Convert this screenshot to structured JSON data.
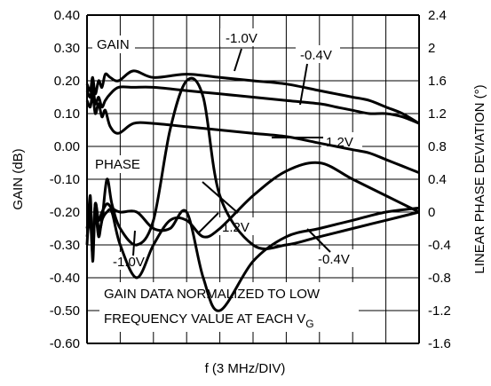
{
  "chart_data": {
    "type": "line",
    "xlabel": "f (3 MHz/DIV)",
    "ylabel_left": "GAIN (dB)",
    "ylabel_right": "LINEAR PHASE DEVIATION (°)",
    "left_ticks": [
      "0.40",
      "0.30",
      "0.20",
      "0.10",
      "0.00",
      "-0.10",
      "-0.20",
      "-0.30",
      "-0.40",
      "-0.50",
      "-0.60"
    ],
    "right_ticks": [
      "2.4",
      "2",
      "1.6",
      "1.2",
      "0.8",
      "0.4",
      "0",
      "-0.4",
      "-0.8",
      "-1.2",
      "-1.6"
    ],
    "ylim_left": [
      -0.6,
      0.4
    ],
    "ylim_right": [
      -1.6,
      2.4
    ],
    "xlim_div": [
      0,
      10
    ],
    "grid": true,
    "labels": {
      "gain": "GAIN",
      "phase": "PHASE",
      "v_m10_top": "-1.0V",
      "v_m04_top": "-0.4V",
      "v_12_top": "1.2V",
      "v_12_bottom": "1.2V",
      "v_m10_bottom": "-1.0V",
      "v_m04_bottom": "-0.4V"
    },
    "note_line1": "GAIN DATA NORMALIZED TO LOW",
    "note_line2": "FREQUENCY VALUE AT EACH V",
    "note_sub": "G",
    "series": [
      {
        "axis": "left",
        "x": [
          0,
          0.1,
          0.17,
          0.25,
          0.35,
          0.45,
          0.55,
          0.7,
          0.95,
          1.4,
          2,
          3,
          4,
          5,
          6,
          7,
          7.5,
          8,
          8.5,
          9,
          9.5,
          10
        ],
        "values": [
          0.19,
          0.17,
          0.21,
          0.16,
          0.2,
          0.18,
          0.22,
          0.21,
          0.2,
          0.23,
          0.21,
          0.22,
          0.21,
          0.2,
          0.19,
          0.17,
          0.16,
          0.15,
          0.14,
          0.12,
          0.1,
          0.07
        ]
      },
      {
        "axis": "left",
        "x": [
          0,
          0.1,
          0.17,
          0.25,
          0.35,
          0.45,
          0.55,
          0.7,
          0.95,
          1.4,
          2,
          3,
          4,
          5,
          6,
          7,
          7.5,
          8,
          8.5,
          9,
          9.5,
          10
        ],
        "values": [
          0.17,
          0.15,
          0.19,
          0.13,
          0.15,
          0.12,
          0.14,
          0.16,
          0.18,
          0.18,
          0.18,
          0.17,
          0.16,
          0.15,
          0.14,
          0.13,
          0.12,
          0.11,
          0.1,
          0.1,
          0.09,
          0.07
        ]
      },
      {
        "axis": "left",
        "x": [
          0,
          0.1,
          0.17,
          0.25,
          0.35,
          0.45,
          0.55,
          0.7,
          0.95,
          1.4,
          2,
          3,
          4,
          5,
          6,
          7,
          7.5,
          8,
          8.5,
          9,
          9.5,
          10
        ],
        "values": [
          0.14,
          0.12,
          0.16,
          0.1,
          0.13,
          0.09,
          0.11,
          0.06,
          0.04,
          0.07,
          0.07,
          0.06,
          0.05,
          0.04,
          0.03,
          0.01,
          0.0,
          -0.01,
          -0.02,
          -0.04,
          -0.06,
          -0.08
        ]
      },
      {
        "axis": "right",
        "x": [
          0,
          0.1,
          0.17,
          0.25,
          0.35,
          0.45,
          0.6,
          0.75,
          1,
          1.5,
          2,
          2.5,
          3,
          3.5,
          4,
          5,
          6,
          7,
          8,
          9,
          10
        ],
        "values": [
          -0.4,
          0.2,
          -0.6,
          0.1,
          -0.2,
          -0.1,
          0.4,
          0.1,
          -0.2,
          -0.4,
          -0.1,
          1,
          1.6,
          1.4,
          0.2,
          -0.4,
          -0.4,
          -0.3,
          -0.2,
          -0.1,
          0.0
        ]
      },
      {
        "axis": "right",
        "x": [
          0,
          0.1,
          0.17,
          0.25,
          0.35,
          0.45,
          0.6,
          0.75,
          1,
          1.5,
          2,
          2.5,
          3,
          3.5,
          4,
          5,
          6,
          7,
          8,
          9,
          10
        ],
        "values": [
          -0.3,
          -0.1,
          -0.5,
          0.0,
          -0.3,
          -0.1,
          0.0,
          0.0,
          -0.4,
          -0.8,
          -0.4,
          -0.1,
          -0.1,
          -0.3,
          -0.2,
          0.2,
          0.5,
          0.6,
          0.4,
          0.2,
          0.0
        ]
      },
      {
        "axis": "right",
        "x": [
          0,
          0.1,
          0.17,
          0.25,
          0.35,
          0.45,
          0.6,
          0.75,
          1,
          1.5,
          2,
          2.5,
          3,
          3.5,
          4,
          5,
          6,
          7,
          8,
          9,
          10
        ],
        "values": [
          -0.2,
          0.0,
          -0.4,
          0.1,
          -0.1,
          0.0,
          0.1,
          0.05,
          0.0,
          0.0,
          -0.2,
          -0.2,
          0.0,
          -0.8,
          -1.2,
          -0.6,
          -0.3,
          -0.2,
          -0.1,
          0.0,
          0.05
        ]
      }
    ]
  }
}
